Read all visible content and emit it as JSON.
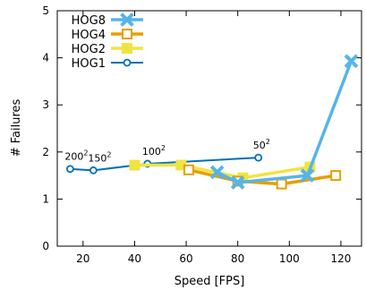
{
  "chart_data": {
    "type": "line",
    "xlabel": "Speed [FPS]",
    "ylabel": "# Failures",
    "xlim": [
      10,
      128
    ],
    "ylim": [
      0,
      5
    ],
    "xticks": [
      20,
      40,
      60,
      80,
      100,
      120
    ],
    "yticks": [
      0,
      1,
      2,
      3,
      4,
      5
    ],
    "legend": "top-left",
    "grid": false,
    "series": [
      {
        "name": "HOG8",
        "color": "#56b4e9",
        "marker": "x",
        "points": [
          [
            72,
            1.57
          ],
          [
            80,
            1.35
          ],
          [
            107,
            1.5
          ],
          [
            124,
            3.93
          ]
        ]
      },
      {
        "name": "HOG4",
        "color": "#e69f00",
        "marker": "square-open",
        "points": [
          [
            61,
            1.62
          ],
          [
            80,
            1.38
          ],
          [
            97,
            1.32
          ],
          [
            118,
            1.5
          ]
        ]
      },
      {
        "name": "HOG2",
        "color": "#f0e442",
        "marker": "square-filled",
        "points": [
          [
            40,
            1.72
          ],
          [
            58,
            1.72
          ],
          [
            82,
            1.45
          ],
          [
            108,
            1.68
          ]
        ]
      },
      {
        "name": "HOG1",
        "color": "#0072b2",
        "marker": "circle-open",
        "points": [
          [
            15,
            1.64
          ],
          [
            24,
            1.61
          ],
          [
            45,
            1.75
          ],
          [
            88,
            1.88
          ]
        ]
      }
    ],
    "annotations": [
      {
        "base": "200",
        "sup": "2",
        "x": 15,
        "y": 1.64
      },
      {
        "base": "150",
        "sup": "2",
        "x": 24,
        "y": 1.61
      },
      {
        "base": "100",
        "sup": "2",
        "x": 45,
        "y": 1.75
      },
      {
        "base": "50",
        "sup": "2",
        "x": 88,
        "y": 1.88
      }
    ]
  }
}
